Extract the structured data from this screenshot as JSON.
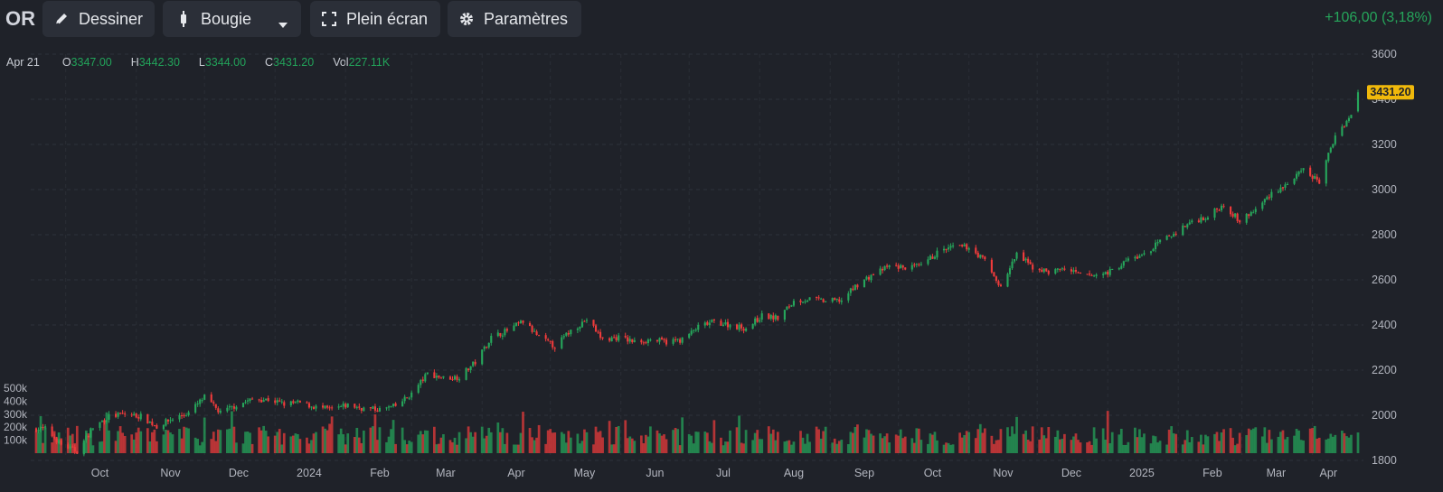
{
  "toolbar": {
    "symbol": "OR",
    "draw_label": "Dessiner",
    "chart_type_label": "Bougie",
    "fullscreen_label": "Plein écran",
    "settings_label": "Paramètres",
    "change_text": "+106,00 (3,18%)"
  },
  "legend": {
    "date": "Apr 21",
    "open_key": "O",
    "open": "3347.00",
    "high_key": "H",
    "high": "3442.30",
    "low_key": "L",
    "low": "3344.00",
    "close_key": "C",
    "close": "3431.20",
    "vol_key": "Vol",
    "vol": "227.11K"
  },
  "colors": {
    "up": "#26a65b",
    "down": "#ef3b3b",
    "bg": "#1f2229",
    "last_price_tag": "#f0b90b"
  },
  "icons": {
    "draw": "pen-icon",
    "candle": "candlestick-icon",
    "caret": "chevron-down-icon",
    "fullscreen": "fullscreen-icon",
    "settings": "gear-icon"
  },
  "chart_data": {
    "type": "candlestick",
    "price_axis": {
      "ticks": [
        "3600",
        "3400",
        "3200",
        "3000",
        "2800",
        "2600",
        "2400",
        "2200",
        "2000",
        "1800"
      ],
      "range": [
        1800,
        3600
      ]
    },
    "volume_axis": {
      "ticks": [
        "500k",
        "400k",
        "300k",
        "200k",
        "100k"
      ],
      "range": [
        0,
        500000
      ]
    },
    "x_labels": [
      "Oct",
      "Nov",
      "Dec",
      "2024",
      "Feb",
      "Mar",
      "Apr",
      "May",
      "Jun",
      "Jul",
      "Aug",
      "Sep",
      "Oct",
      "Nov",
      "Dec",
      "2025",
      "Feb",
      "Mar",
      "Apr"
    ],
    "last_price": "3431.20",
    "grid": true,
    "approx_weekly_close": [
      [
        "2023-09-22",
        1940
      ],
      [
        "2023-09-29",
        1870
      ],
      [
        "2023-10-06",
        1840
      ],
      [
        "2023-10-13",
        1945
      ],
      [
        "2023-10-20",
        1995
      ],
      [
        "2023-10-27",
        2005
      ],
      [
        "2023-11-03",
        1995
      ],
      [
        "2023-11-10",
        1950
      ],
      [
        "2023-11-17",
        1985
      ],
      [
        "2023-11-24",
        2010
      ],
      [
        "2023-12-01",
        2080
      ],
      [
        "2023-12-08",
        2010
      ],
      [
        "2023-12-15",
        2045
      ],
      [
        "2023-12-22",
        2070
      ],
      [
        "2023-12-29",
        2070
      ],
      [
        "2024-01-05",
        2050
      ],
      [
        "2024-01-12",
        2055
      ],
      [
        "2024-01-19",
        2035
      ],
      [
        "2024-01-26",
        2025
      ],
      [
        "2024-02-02",
        2045
      ],
      [
        "2024-02-09",
        2030
      ],
      [
        "2024-02-16",
        2025
      ],
      [
        "2024-02-23",
        2040
      ],
      [
        "2024-03-01",
        2095
      ],
      [
        "2024-03-08",
        2185
      ],
      [
        "2024-03-15",
        2165
      ],
      [
        "2024-03-22",
        2170
      ],
      [
        "2024-03-29",
        2235
      ],
      [
        "2024-04-05",
        2345
      ],
      [
        "2024-04-12",
        2375
      ],
      [
        "2024-04-19",
        2415
      ],
      [
        "2024-04-26",
        2345
      ],
      [
        "2024-05-03",
        2305
      ],
      [
        "2024-05-10",
        2375
      ],
      [
        "2024-05-17",
        2425
      ],
      [
        "2024-05-24",
        2335
      ],
      [
        "2024-05-31",
        2345
      ],
      [
        "2024-06-07",
        2325
      ],
      [
        "2024-06-14",
        2335
      ],
      [
        "2024-06-21",
        2325
      ],
      [
        "2024-06-28",
        2335
      ],
      [
        "2024-07-05",
        2390
      ],
      [
        "2024-07-12",
        2415
      ],
      [
        "2024-07-19",
        2400
      ],
      [
        "2024-07-26",
        2385
      ],
      [
        "2024-08-02",
        2440
      ],
      [
        "2024-08-09",
        2430
      ],
      [
        "2024-08-16",
        2505
      ],
      [
        "2024-08-23",
        2515
      ],
      [
        "2024-08-30",
        2505
      ],
      [
        "2024-09-06",
        2510
      ],
      [
        "2024-09-13",
        2580
      ],
      [
        "2024-09-20",
        2625
      ],
      [
        "2024-09-27",
        2660
      ],
      [
        "2024-10-04",
        2655
      ],
      [
        "2024-10-11",
        2660
      ],
      [
        "2024-10-18",
        2720
      ],
      [
        "2024-10-25",
        2745
      ],
      [
        "2024-11-01",
        2745
      ],
      [
        "2024-11-08",
        2685
      ],
      [
        "2024-11-15",
        2565
      ],
      [
        "2024-11-22",
        2715
      ],
      [
        "2024-11-29",
        2655
      ],
      [
        "2024-12-06",
        2635
      ],
      [
        "2024-12-13",
        2650
      ],
      [
        "2024-12-20",
        2620
      ],
      [
        "2024-12-27",
        2620
      ],
      [
        "2025-01-03",
        2640
      ],
      [
        "2025-01-10",
        2690
      ],
      [
        "2025-01-17",
        2710
      ],
      [
        "2025-01-24",
        2770
      ],
      [
        "2025-01-31",
        2810
      ],
      [
        "2025-02-07",
        2860
      ],
      [
        "2025-02-14",
        2880
      ],
      [
        "2025-02-21",
        2935
      ],
      [
        "2025-02-28",
        2860
      ],
      [
        "2025-03-07",
        2910
      ],
      [
        "2025-03-14",
        2985
      ],
      [
        "2025-03-21",
        3025
      ],
      [
        "2025-03-28",
        3085
      ],
      [
        "2025-04-04",
        3035
      ],
      [
        "2025-04-11",
        3240
      ],
      [
        "2025-04-18",
        3330
      ],
      [
        "2025-04-21",
        3431.2
      ]
    ]
  }
}
